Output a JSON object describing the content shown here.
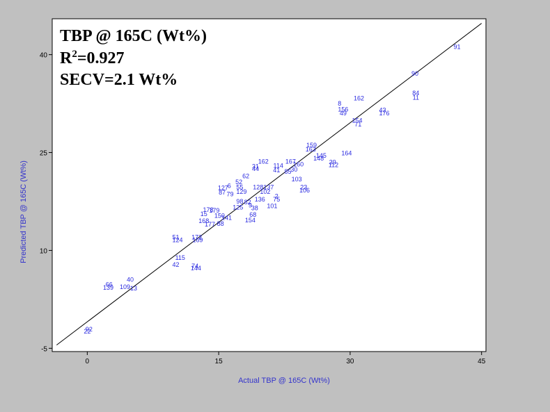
{
  "chart_data": {
    "type": "scatter",
    "title": "TBP @ 165C (Wt%)",
    "r2_prefix": "R",
    "r2_sup": "2",
    "r2_value": "=0.927",
    "secv": "SECV=2.1 Wt%",
    "xlabel": "Actual TBP @ 165C (Wt%)",
    "ylabel": "Predicted TBP @ 165C (Wt%)",
    "xlim": [
      -4,
      45.5
    ],
    "ylim": [
      -5.5,
      45.5
    ],
    "x_ticks": [
      "0",
      "15",
      "30",
      "45"
    ],
    "x_tick_values": [
      0,
      15,
      30,
      45
    ],
    "y_ticks": [
      "-5",
      "10",
      "25",
      "40"
    ],
    "y_tick_values": [
      -5,
      10,
      25,
      40
    ],
    "grid": false,
    "fit_line": {
      "x": [
        -3.5,
        45
      ],
      "y": [
        -4.5,
        44.8
      ]
    },
    "points": [
      {
        "label": "91",
        "x": 42.2,
        "y": 41.2
      },
      {
        "label": "90",
        "x": 37.4,
        "y": 37.1
      },
      {
        "label": "84",
        "x": 37.5,
        "y": 34.1
      },
      {
        "label": "11",
        "x": 37.5,
        "y": 33.4
      },
      {
        "label": "162",
        "x": 31.0,
        "y": 33.3
      },
      {
        "label": "8",
        "x": 28.8,
        "y": 32.5
      },
      {
        "label": "156",
        "x": 29.2,
        "y": 31.6
      },
      {
        "label": "49",
        "x": 29.2,
        "y": 31.0
      },
      {
        "label": "43",
        "x": 33.7,
        "y": 31.5
      },
      {
        "label": "176",
        "x": 33.9,
        "y": 31.0
      },
      {
        "label": "154",
        "x": 30.8,
        "y": 29.9
      },
      {
        "label": "71",
        "x": 30.9,
        "y": 29.3
      },
      {
        "label": "159",
        "x": 25.6,
        "y": 26.1
      },
      {
        "label": "163",
        "x": 25.5,
        "y": 25.5
      },
      {
        "label": "164",
        "x": 29.6,
        "y": 24.9
      },
      {
        "label": "145",
        "x": 26.7,
        "y": 24.5
      },
      {
        "label": "148",
        "x": 26.4,
        "y": 24.1
      },
      {
        "label": "39",
        "x": 28.0,
        "y": 23.5
      },
      {
        "label": "112",
        "x": 28.1,
        "y": 23.1
      },
      {
        "label": "167",
        "x": 23.2,
        "y": 23.6
      },
      {
        "label": "160",
        "x": 24.1,
        "y": 23.2
      },
      {
        "label": "30",
        "x": 23.6,
        "y": 22.4
      },
      {
        "label": "85",
        "x": 22.9,
        "y": 22.1
      },
      {
        "label": "114",
        "x": 21.8,
        "y": 23.0
      },
      {
        "label": "41",
        "x": 21.6,
        "y": 22.3
      },
      {
        "label": "162",
        "x": 20.1,
        "y": 23.6
      },
      {
        "label": "31",
        "x": 19.2,
        "y": 22.9
      },
      {
        "label": "44",
        "x": 19.2,
        "y": 22.5
      },
      {
        "label": "62",
        "x": 18.1,
        "y": 21.4
      },
      {
        "label": "103",
        "x": 23.9,
        "y": 20.9
      },
      {
        "label": "23",
        "x": 24.7,
        "y": 19.7
      },
      {
        "label": "106",
        "x": 24.8,
        "y": 19.2
      },
      {
        "label": "128",
        "x": 19.5,
        "y": 19.7
      },
      {
        "label": "137",
        "x": 20.7,
        "y": 19.7
      },
      {
        "label": "102",
        "x": 20.3,
        "y": 19.0
      },
      {
        "label": "2",
        "x": 21.6,
        "y": 18.3
      },
      {
        "label": "75",
        "x": 21.6,
        "y": 17.8
      },
      {
        "label": "6",
        "x": 16.2,
        "y": 19.9
      },
      {
        "label": "127",
        "x": 15.5,
        "y": 19.6
      },
      {
        "label": "52",
        "x": 17.3,
        "y": 20.5
      },
      {
        "label": "55",
        "x": 17.4,
        "y": 19.7
      },
      {
        "label": "87",
        "x": 15.4,
        "y": 18.9
      },
      {
        "label": "79",
        "x": 16.3,
        "y": 18.6
      },
      {
        "label": "129",
        "x": 17.6,
        "y": 19.0
      },
      {
        "label": "136",
        "x": 19.7,
        "y": 17.8
      },
      {
        "label": "98",
        "x": 17.4,
        "y": 17.5
      },
      {
        "label": "82",
        "x": 18.3,
        "y": 17.4
      },
      {
        "label": "9",
        "x": 18.6,
        "y": 16.9
      },
      {
        "label": "101",
        "x": 21.1,
        "y": 16.8
      },
      {
        "label": "38",
        "x": 19.1,
        "y": 16.5
      },
      {
        "label": "125",
        "x": 17.2,
        "y": 16.6
      },
      {
        "label": "178",
        "x": 13.8,
        "y": 16.2
      },
      {
        "label": "179",
        "x": 14.5,
        "y": 16.1
      },
      {
        "label": "15",
        "x": 13.3,
        "y": 15.6
      },
      {
        "label": "150",
        "x": 15.1,
        "y": 15.3
      },
      {
        "label": "168",
        "x": 13.3,
        "y": 14.5
      },
      {
        "label": "141",
        "x": 15.9,
        "y": 15.0
      },
      {
        "label": "177",
        "x": 14.0,
        "y": 14.0
      },
      {
        "label": "88",
        "x": 15.2,
        "y": 14.1
      },
      {
        "label": "154",
        "x": 18.6,
        "y": 14.6
      },
      {
        "label": "68",
        "x": 18.9,
        "y": 15.5
      },
      {
        "label": "51",
        "x": 10.1,
        "y": 12.0
      },
      {
        "label": "124",
        "x": 10.3,
        "y": 11.6
      },
      {
        "label": "172",
        "x": 12.5,
        "y": 12.0
      },
      {
        "label": "169",
        "x": 12.6,
        "y": 11.6
      },
      {
        "label": "115",
        "x": 10.6,
        "y": 8.9
      },
      {
        "label": "42",
        "x": 10.1,
        "y": 7.8
      },
      {
        "label": "74",
        "x": 12.3,
        "y": 7.6
      },
      {
        "label": "144",
        "x": 12.4,
        "y": 7.3
      },
      {
        "label": "40",
        "x": 4.9,
        "y": 5.5
      },
      {
        "label": "66",
        "x": 2.5,
        "y": 4.8
      },
      {
        "label": "139",
        "x": 2.4,
        "y": 4.3
      },
      {
        "label": "109",
        "x": 4.3,
        "y": 4.4
      },
      {
        "label": "13",
        "x": 5.3,
        "y": 4.2
      },
      {
        "label": "92",
        "x": 0.2,
        "y": -2.1
      },
      {
        "label": "22",
        "x": 0.0,
        "y": -2.4
      }
    ]
  }
}
